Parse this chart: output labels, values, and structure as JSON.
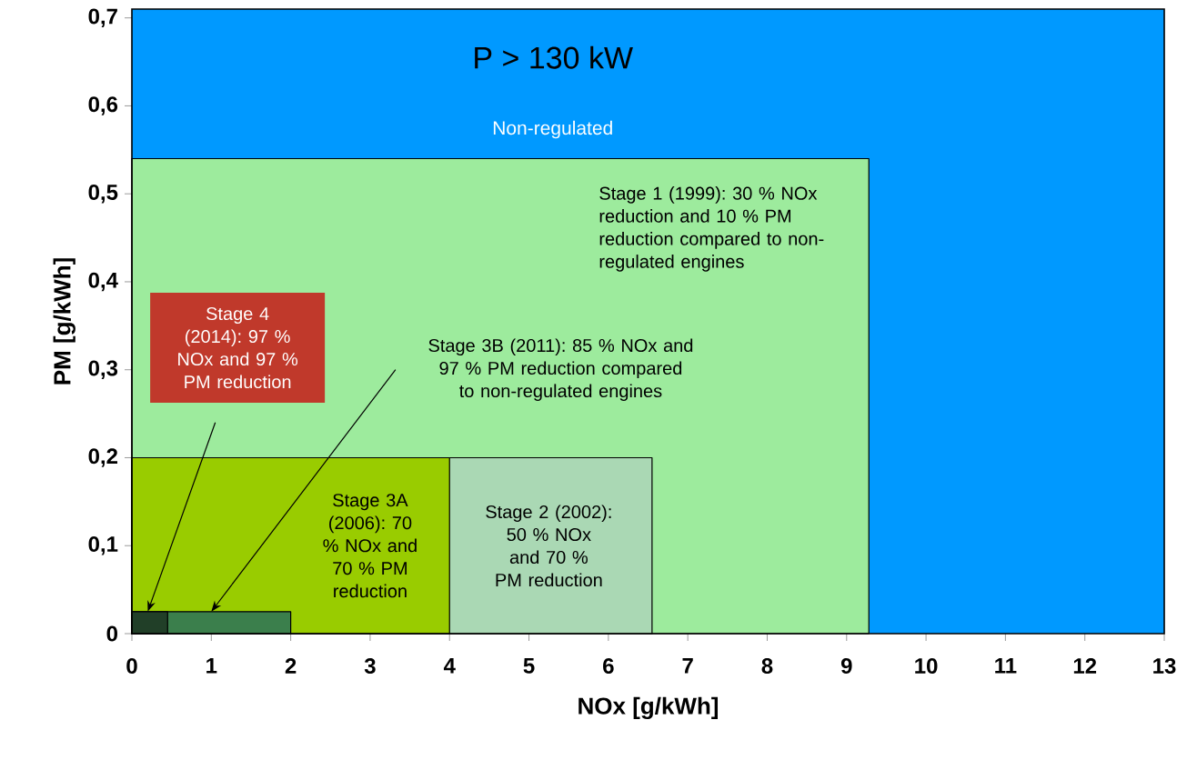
{
  "chart_data": {
    "type": "area",
    "xlabel": "NOx [g/kWh]",
    "ylabel": "PM [g/kWh]",
    "xlim": [
      0,
      13
    ],
    "ylim": [
      0,
      0.71
    ],
    "xticks": [
      0,
      1,
      2,
      3,
      4,
      5,
      6,
      7,
      8,
      9,
      10,
      11,
      12,
      13
    ],
    "yticks": [
      0,
      {
        "value": 0.1,
        "label": "0,1"
      },
      {
        "value": 0.2,
        "label": "0,2"
      },
      {
        "value": 0.3,
        "label": "0,3"
      },
      {
        "value": 0.4,
        "label": "0,4"
      },
      {
        "value": 0.5,
        "label": "0,5"
      },
      {
        "value": 0.6,
        "label": "0,6"
      },
      {
        "value": 0.7,
        "label": "0,7"
      }
    ],
    "bands": [
      {
        "axis": "x",
        "from": 0,
        "to": 13,
        "label": "Non-regulated",
        "color": "#0099ff"
      }
    ],
    "series": [
      {
        "color": "#9deb9d",
        "x": [
          0,
          9.28
        ],
        "values": [
          0.54,
          0.54
        ]
      },
      {
        "color": "#aad8b4",
        "x": [
          0,
          6.55
        ],
        "values": [
          0.2,
          0.2
        ]
      },
      {
        "color": "#99cc00",
        "x": [
          0,
          4
        ],
        "values": [
          0.2,
          0.2
        ]
      },
      {
        "color": "#3b7f4c",
        "x": [
          0,
          2
        ],
        "values": [
          0.025,
          0.025
        ]
      },
      {
        "color": "#213f28",
        "x": [
          0,
          0.45
        ],
        "values": [
          0.025,
          0.025
        ]
      }
    ],
    "annotations": [
      "P > 130 kW",
      "Stage 1 (1999): 30 % NOx reduction and 10 % PM reduction compared to non-regulated engines",
      "Stage 4 (2014): 97 % NOx and 97 % PM reduction",
      "Stage 3B (2011): 85 % NOx and 97 % PM reduction compared to non-regulated engines",
      "Stage 3A (2006): 70 % NOx and 70 % PM reduction",
      "Stage 2 (2002): 50 % NOx and 70 % PM reduction"
    ]
  }
}
